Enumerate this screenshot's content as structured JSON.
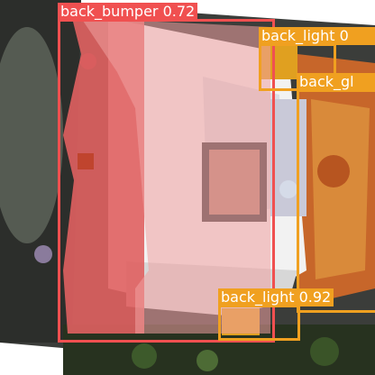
{
  "detections": [
    {
      "label": "back_bumper 0.72",
      "color": "#f05050",
      "fill": "rgba(240,80,80,0.45)"
    },
    {
      "label": "back_light 0",
      "color": "#f0a020"
    },
    {
      "label": "back_gl",
      "color": "#f0a020"
    },
    {
      "label": "back_light 0.92",
      "color": "#f0a020"
    }
  ],
  "photo": {
    "vehicle_color": "#c95a2a",
    "body_color": "#f2f2f2",
    "bumper_color": "#e06060"
  }
}
